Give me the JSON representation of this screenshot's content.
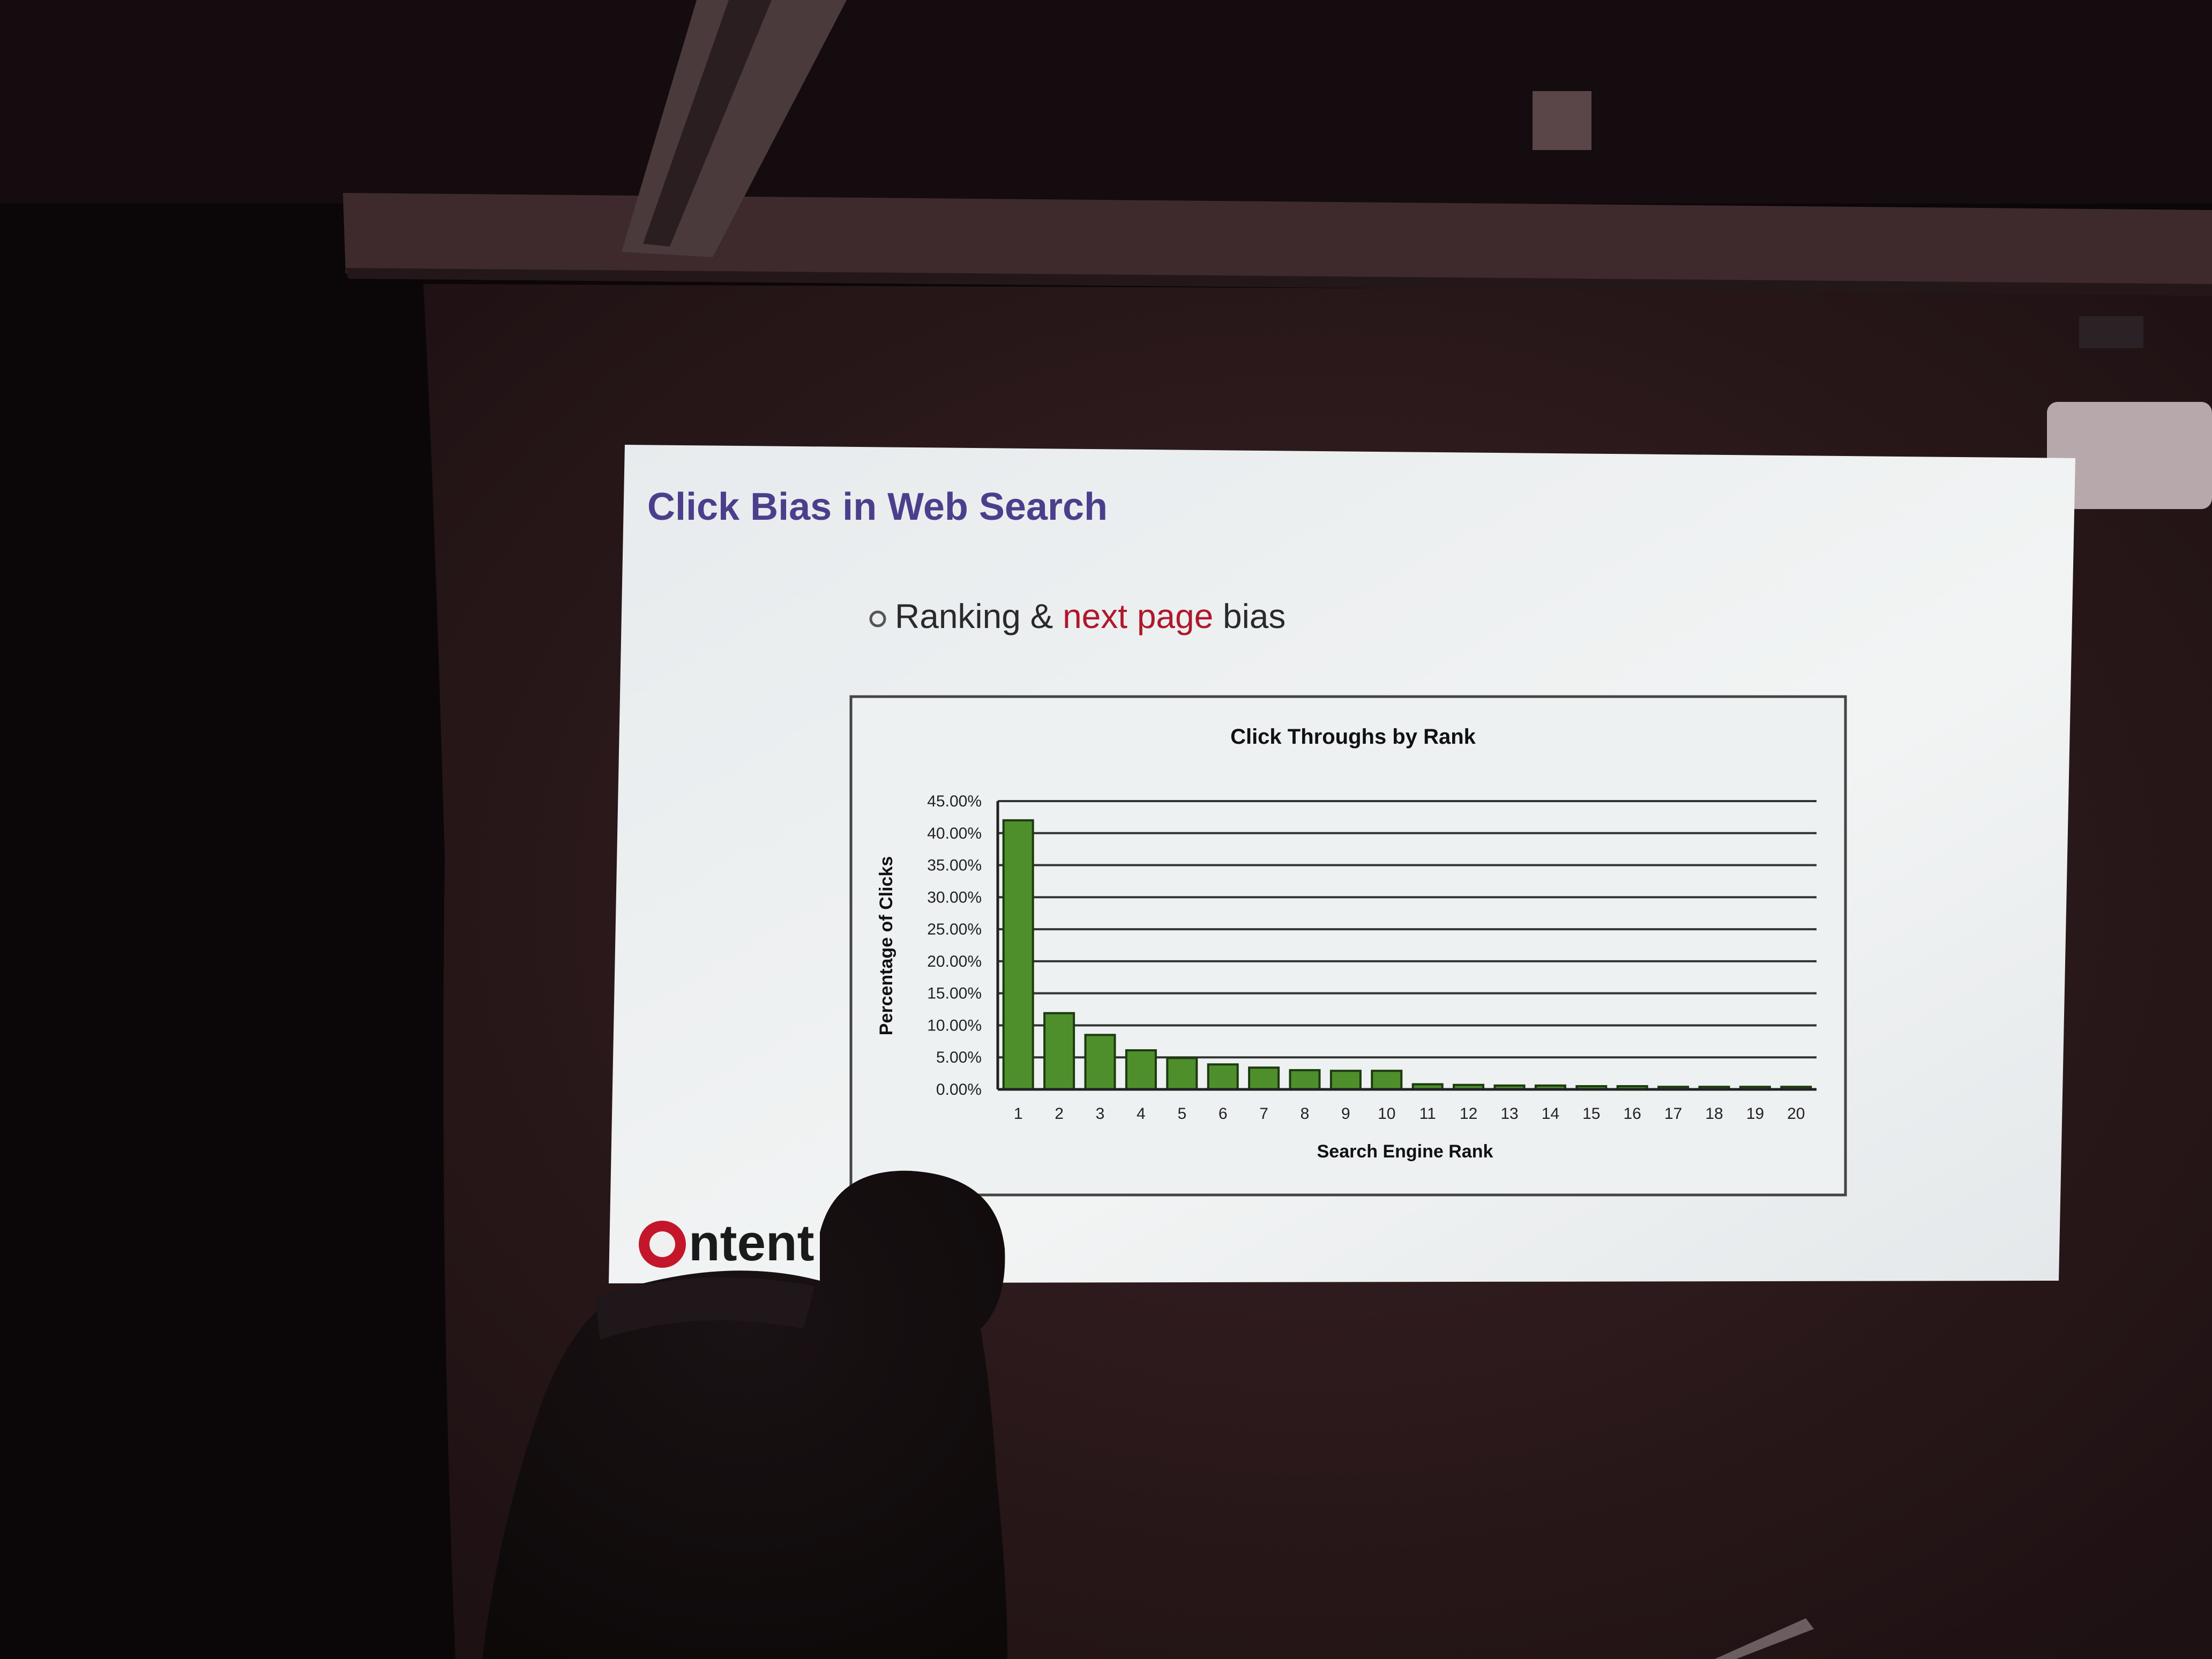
{
  "slide": {
    "title": "Click Bias in Web Search",
    "bullet": {
      "part1": "Ranking & ",
      "highlight": "next page",
      "part2": " bias"
    },
    "logo_text": "ntent"
  },
  "colors": {
    "title": "#4b3f8c",
    "highlight": "#b0182a",
    "bar_fill": "#4e8f2c",
    "bar_stroke": "#1d3a10",
    "logo_red": "#c4162a"
  },
  "chart_data": {
    "type": "bar",
    "title": "Click Throughs by Rank",
    "xlabel": "Search Engine Rank",
    "ylabel": "Percentage of Clicks",
    "categories": [
      "1",
      "2",
      "3",
      "4",
      "5",
      "6",
      "7",
      "8",
      "9",
      "10",
      "11",
      "12",
      "13",
      "14",
      "15",
      "16",
      "17",
      "18",
      "19",
      "20"
    ],
    "values": [
      42.0,
      11.9,
      8.5,
      6.1,
      4.9,
      3.9,
      3.4,
      3.0,
      2.9,
      2.9,
      0.8,
      0.7,
      0.6,
      0.6,
      0.5,
      0.5,
      0.4,
      0.4,
      0.4,
      0.4
    ],
    "yticks": [
      "0.00%",
      "5.00%",
      "10.00%",
      "15.00%",
      "20.00%",
      "25.00%",
      "30.00%",
      "35.00%",
      "40.00%",
      "45.00%"
    ],
    "ylim": [
      0,
      45
    ],
    "grid": true,
    "legend": false
  }
}
